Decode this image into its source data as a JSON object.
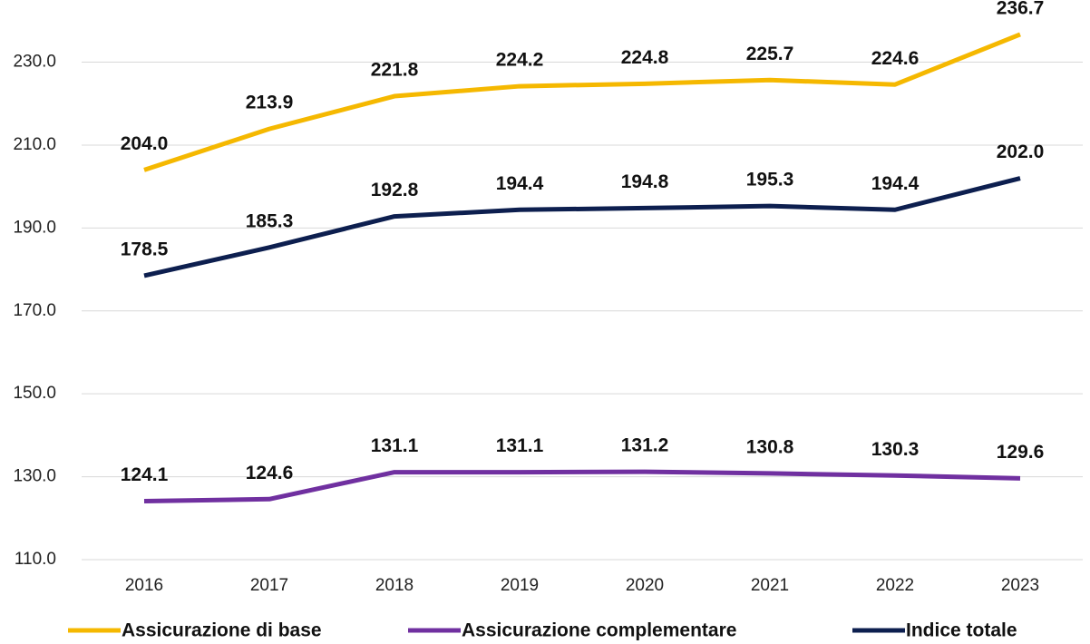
{
  "chart_data": {
    "type": "line",
    "categories": [
      "2016",
      "2017",
      "2018",
      "2019",
      "2020",
      "2021",
      "2022",
      "2023"
    ],
    "series": [
      {
        "name": "Assicurazione di base",
        "color": "#f5b800",
        "values": [
          204.0,
          213.9,
          221.8,
          224.2,
          224.8,
          225.7,
          224.6,
          236.7
        ],
        "value_labels": [
          "204.0",
          "213.9",
          "221.8",
          "224.2",
          "224.8",
          "225.7",
          "224.6",
          "236.7"
        ]
      },
      {
        "name": "Assicurazione complementare",
        "color": "#7030a0",
        "values": [
          124.1,
          124.6,
          131.1,
          131.1,
          131.2,
          130.8,
          130.3,
          129.6
        ],
        "value_labels": [
          "124.1",
          "124.6",
          "131.1",
          "131.1",
          "131.2",
          "130.8",
          "130.3",
          "129.6"
        ]
      },
      {
        "name": "Indice totale",
        "color": "#0d1f4f",
        "values": [
          178.5,
          185.3,
          192.8,
          194.4,
          194.8,
          195.3,
          194.4,
          202.0
        ],
        "value_labels": [
          "178.5",
          "185.3",
          "192.8",
          "194.4",
          "194.8",
          "195.3",
          "194.4",
          "202.0"
        ]
      }
    ],
    "ylim": [
      110,
      245
    ],
    "yticks": [
      {
        "value": 110,
        "label": "110.0"
      },
      {
        "value": 130,
        "label": "130.0"
      },
      {
        "value": 150,
        "label": "150.0"
      },
      {
        "value": 170,
        "label": "170.0"
      },
      {
        "value": 190,
        "label": "190.0"
      },
      {
        "value": 210,
        "label": "210.0"
      },
      {
        "value": 230,
        "label": "230.0"
      }
    ],
    "grid": true,
    "legend": "bottom"
  }
}
